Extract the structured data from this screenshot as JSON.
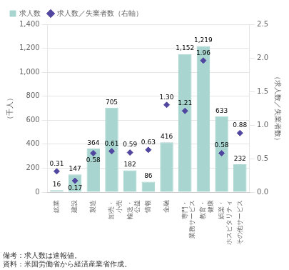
{
  "chart_data": {
    "type": "bar",
    "categories": [
      "鉱業",
      "建設",
      "製造",
      "卸売・\n小売",
      "輸送・\n公益",
      "情報",
      "金融",
      "専門・\n業務サービス",
      "教育・\n健康",
      "娯楽・\nホスピタリティ",
      "その他サービス"
    ],
    "series": [
      {
        "name": "求人数",
        "type": "bar",
        "color": "#a8d5cf",
        "values": [
          16,
          147,
          364,
          705,
          182,
          86,
          416,
          1152,
          1219,
          633,
          232
        ],
        "value_labels": [
          "16",
          "147",
          "364",
          "705",
          "182",
          "86",
          "416",
          "1,152",
          "1,219",
          "633",
          "232"
        ]
      },
      {
        "name": "求人数／失業者数（右軸）",
        "type": "line",
        "axis": "y2",
        "color": "#5046a0",
        "marker": "diamond",
        "line_style": "none",
        "values": [
          0.31,
          0.17,
          0.58,
          0.61,
          0.59,
          0.63,
          1.3,
          1.21,
          1.96,
          0.58,
          0.88
        ],
        "value_labels": [
          "0.31",
          "0.17",
          "0.58",
          "0.61",
          "0.59",
          "0.63",
          "1.30",
          "1.21",
          "1.96",
          "0.58",
          "0.88"
        ]
      }
    ],
    "ylabel": "（千人）",
    "y2label": "（求人数／失業者数）",
    "ylim": [
      0,
      1400
    ],
    "yticks": [
      0,
      200,
      400,
      600,
      800,
      {
        "value": 1000,
        "label": "1,000"
      },
      {
        "value": 1200,
        "label": "1,200"
      },
      {
        "value": 1400,
        "label": "1,400"
      }
    ],
    "y2lim": [
      0,
      2.5
    ],
    "y2ticks": [
      {
        "value": 0,
        "label": "0.0"
      },
      0.5,
      {
        "value": 1,
        "label": "1.0"
      },
      1.5,
      {
        "value": 2,
        "label": "2.0"
      },
      2.5
    ],
    "grid": true,
    "legend": "upper left",
    "data_labels": true,
    "annotations": [
      "備考：求人数は速報値。",
      "資料：米国労働省から経済産業省作成。"
    ]
  }
}
